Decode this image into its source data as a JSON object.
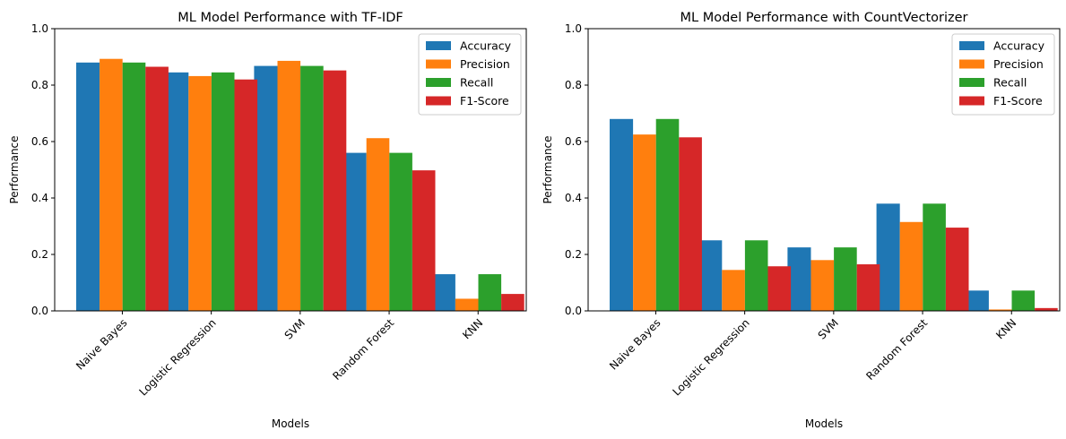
{
  "chart_data": [
    {
      "type": "bar",
      "title": "ML Model Performance with TF-IDF",
      "xlabel": "Models",
      "ylabel": "Performance",
      "ylim": [
        0,
        1.0
      ],
      "yticks": [
        "0.0",
        "0.2",
        "0.4",
        "0.6",
        "0.8",
        "1.0"
      ],
      "grid": false,
      "legend_position": "top-right",
      "categories": [
        "Naive Bayes",
        "Logistic Regression",
        "SVM",
        "Random Forest",
        "KNN"
      ],
      "series": [
        {
          "name": "Accuracy",
          "color": "#1f77b4",
          "values": [
            0.88,
            0.845,
            0.868,
            0.56,
            0.13
          ]
        },
        {
          "name": "Precision",
          "color": "#ff7f0e",
          "values": [
            0.893,
            0.832,
            0.886,
            0.612,
            0.043
          ]
        },
        {
          "name": "Recall",
          "color": "#2ca02c",
          "values": [
            0.88,
            0.845,
            0.868,
            0.56,
            0.13
          ]
        },
        {
          "name": "F1-Score",
          "color": "#d62728",
          "values": [
            0.865,
            0.82,
            0.852,
            0.498,
            0.06
          ]
        }
      ]
    },
    {
      "type": "bar",
      "title": "ML Model Performance with CountVectorizer",
      "xlabel": "Models",
      "ylabel": "Performance",
      "ylim": [
        0,
        1.0
      ],
      "yticks": [
        "0.0",
        "0.2",
        "0.4",
        "0.6",
        "0.8",
        "1.0"
      ],
      "grid": false,
      "legend_position": "top-right",
      "categories": [
        "Naive Bayes",
        "Logistic Regression",
        "SVM",
        "Random Forest",
        "KNN"
      ],
      "series": [
        {
          "name": "Accuracy",
          "color": "#1f77b4",
          "values": [
            0.68,
            0.25,
            0.225,
            0.38,
            0.072
          ]
        },
        {
          "name": "Precision",
          "color": "#ff7f0e",
          "values": [
            0.625,
            0.145,
            0.18,
            0.315,
            0.005
          ]
        },
        {
          "name": "Recall",
          "color": "#2ca02c",
          "values": [
            0.68,
            0.25,
            0.225,
            0.38,
            0.072
          ]
        },
        {
          "name": "F1-Score",
          "color": "#d62728",
          "values": [
            0.615,
            0.158,
            0.165,
            0.295,
            0.01
          ]
        }
      ]
    }
  ]
}
